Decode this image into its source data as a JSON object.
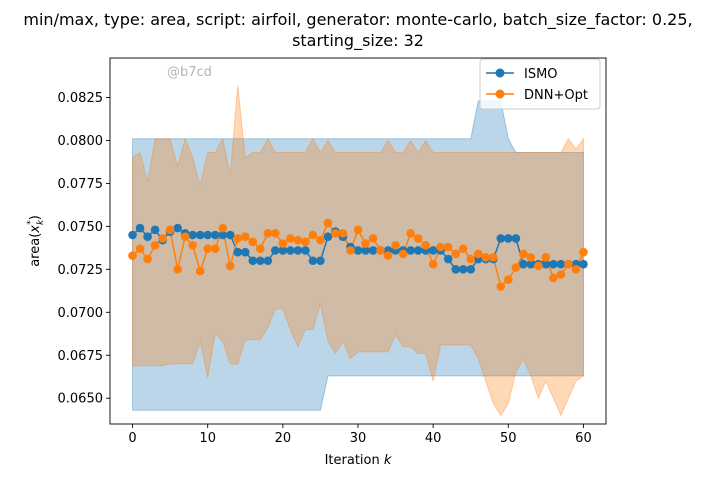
{
  "chart_data": {
    "type": "line",
    "title_line1": "min/max, type: area, script: airfoil, generator: monte-carlo, batch_size_factor: 0.25,",
    "title_line2": "starting_size: 32",
    "xlabel": "Iteration",
    "xlabel_var": "k",
    "ylabel_main": "area(",
    "ylabel_x": "x",
    "ylabel_sub": "k",
    "ylabel_sup": "*",
    "ylabel_close": ")",
    "watermark": "@b7cd",
    "xlim": [
      -3,
      63
    ],
    "ylim": [
      0.0635,
      0.0848
    ],
    "x_ticks": [
      0,
      10,
      20,
      30,
      40,
      50,
      60
    ],
    "y_ticks": [
      0.065,
      0.0675,
      0.07,
      0.0725,
      0.075,
      0.0775,
      0.08,
      0.0825
    ],
    "y_tick_labels": [
      "0.0650",
      "0.0675",
      "0.0700",
      "0.0725",
      "0.0750",
      "0.0775",
      "0.0800",
      "0.0825"
    ],
    "legend_position": "top-right",
    "grid": false,
    "series": [
      {
        "name": "ISMO",
        "color": "#1f77b4",
        "fill_color": "#1f77b4",
        "x": [
          0,
          1,
          2,
          3,
          4,
          5,
          6,
          7,
          8,
          9,
          10,
          11,
          12,
          13,
          14,
          15,
          16,
          17,
          18,
          19,
          20,
          21,
          22,
          23,
          24,
          25,
          26,
          27,
          28,
          29,
          30,
          31,
          32,
          33,
          34,
          35,
          36,
          37,
          38,
          39,
          40,
          41,
          42,
          43,
          44,
          45,
          46,
          47,
          48,
          49,
          50,
          51,
          52,
          53,
          54,
          55,
          56,
          57,
          58,
          59,
          60
        ],
        "values": [
          0.0745,
          0.0749,
          0.0744,
          0.0748,
          0.0742,
          0.0747,
          0.0749,
          0.0746,
          0.0745,
          0.0745,
          0.0745,
          0.0745,
          0.0745,
          0.0745,
          0.0735,
          0.0735,
          0.073,
          0.073,
          0.073,
          0.0736,
          0.0736,
          0.0736,
          0.0736,
          0.0736,
          0.073,
          0.073,
          0.0744,
          0.0747,
          0.0744,
          0.0738,
          0.0736,
          0.0736,
          0.0736,
          0.0736,
          0.0736,
          0.0736,
          0.0736,
          0.0736,
          0.0736,
          0.0736,
          0.0736,
          0.0736,
          0.0731,
          0.0725,
          0.0725,
          0.0725,
          0.0731,
          0.0731,
          0.0731,
          0.0743,
          0.0743,
          0.0743,
          0.0728,
          0.0728,
          0.0728,
          0.0728,
          0.0728,
          0.0728,
          0.0728,
          0.0728,
          0.0728
        ],
        "band_min": [
          0.0643,
          0.0643,
          0.0643,
          0.0643,
          0.0643,
          0.0643,
          0.0643,
          0.0643,
          0.0643,
          0.0643,
          0.0643,
          0.0643,
          0.0643,
          0.0643,
          0.0643,
          0.0643,
          0.0643,
          0.0643,
          0.0643,
          0.0643,
          0.0643,
          0.0643,
          0.0643,
          0.0643,
          0.0643,
          0.0643,
          0.0663,
          0.0663,
          0.0663,
          0.0663,
          0.0663,
          0.0663,
          0.0663,
          0.0663,
          0.0663,
          0.0663,
          0.0663,
          0.0663,
          0.0663,
          0.0663,
          0.0663,
          0.0663,
          0.0663,
          0.0663,
          0.0663,
          0.0663,
          0.0663,
          0.0663,
          0.0663,
          0.0663,
          0.0663,
          0.0663,
          0.0663,
          0.0663,
          0.0663,
          0.0663,
          0.0663,
          0.0663,
          0.0663,
          0.0663,
          0.0663
        ],
        "band_max": [
          0.0801,
          0.0801,
          0.0801,
          0.0801,
          0.0801,
          0.0801,
          0.0801,
          0.0801,
          0.0801,
          0.0801,
          0.0801,
          0.0801,
          0.0801,
          0.0801,
          0.0801,
          0.0801,
          0.0801,
          0.0801,
          0.0801,
          0.0801,
          0.0801,
          0.0801,
          0.0801,
          0.0801,
          0.0801,
          0.0801,
          0.0801,
          0.0801,
          0.0801,
          0.0801,
          0.0801,
          0.0801,
          0.0801,
          0.0801,
          0.0801,
          0.0801,
          0.0801,
          0.0801,
          0.0801,
          0.0801,
          0.0801,
          0.0801,
          0.0801,
          0.0801,
          0.0801,
          0.0801,
          0.0823,
          0.0823,
          0.0823,
          0.0823,
          0.0801,
          0.0793,
          0.0793,
          0.0793,
          0.0793,
          0.0793,
          0.0793,
          0.0793,
          0.0793,
          0.0793,
          0.0793
        ]
      },
      {
        "name": "DNN+Opt",
        "color": "#ff7f0e",
        "fill_color": "#ff7f0e",
        "x": [
          0,
          1,
          2,
          3,
          4,
          5,
          6,
          7,
          8,
          9,
          10,
          11,
          12,
          13,
          14,
          15,
          16,
          17,
          18,
          19,
          20,
          21,
          22,
          23,
          24,
          25,
          26,
          27,
          28,
          29,
          30,
          31,
          32,
          33,
          34,
          35,
          36,
          37,
          38,
          39,
          40,
          41,
          42,
          43,
          44,
          45,
          46,
          47,
          48,
          49,
          50,
          51,
          52,
          53,
          54,
          55,
          56,
          57,
          58,
          59,
          60
        ],
        "values": [
          0.0733,
          0.0737,
          0.0731,
          0.0739,
          0.0743,
          0.0748,
          0.0725,
          0.0744,
          0.0739,
          0.0724,
          0.0737,
          0.0737,
          0.0749,
          0.0727,
          0.0743,
          0.0744,
          0.0741,
          0.0737,
          0.0746,
          0.0746,
          0.074,
          0.0743,
          0.0742,
          0.0741,
          0.0745,
          0.0742,
          0.0752,
          0.0746,
          0.0746,
          0.0736,
          0.0748,
          0.074,
          0.0743,
          0.0736,
          0.0733,
          0.0739,
          0.0734,
          0.0746,
          0.0743,
          0.0739,
          0.0728,
          0.0738,
          0.0738,
          0.0734,
          0.0737,
          0.0731,
          0.0734,
          0.0732,
          0.0732,
          0.0715,
          0.0719,
          0.0726,
          0.0734,
          0.0732,
          0.0727,
          0.0732,
          0.072,
          0.0722,
          0.0728,
          0.0725,
          0.0735
        ],
        "band_min": [
          0.0669,
          0.0669,
          0.0669,
          0.0669,
          0.0669,
          0.067,
          0.067,
          0.067,
          0.067,
          0.0683,
          0.0662,
          0.0688,
          0.0683,
          0.067,
          0.067,
          0.0684,
          0.0684,
          0.0684,
          0.0691,
          0.0702,
          0.0702,
          0.069,
          0.068,
          0.069,
          0.069,
          0.0705,
          0.0683,
          0.0676,
          0.0683,
          0.0673,
          0.0677,
          0.0677,
          0.0677,
          0.0677,
          0.0677,
          0.0687,
          0.068,
          0.068,
          0.0676,
          0.0676,
          0.066,
          0.0681,
          0.0681,
          0.0681,
          0.0681,
          0.0681,
          0.0673,
          0.066,
          0.0647,
          0.064,
          0.0647,
          0.0665,
          0.0673,
          0.0663,
          0.065,
          0.066,
          0.065,
          0.064,
          0.065,
          0.066,
          0.0663
        ],
        "band_max": [
          0.079,
          0.0793,
          0.0776,
          0.0801,
          0.0801,
          0.0801,
          0.0785,
          0.0801,
          0.079,
          0.0774,
          0.0793,
          0.0793,
          0.0801,
          0.078,
          0.0832,
          0.079,
          0.0793,
          0.0793,
          0.0801,
          0.0793,
          0.0793,
          0.0793,
          0.0793,
          0.0793,
          0.0801,
          0.0793,
          0.08,
          0.0793,
          0.0793,
          0.0793,
          0.0793,
          0.0793,
          0.0793,
          0.0793,
          0.08,
          0.0793,
          0.0793,
          0.08,
          0.0793,
          0.08,
          0.0793,
          0.0793,
          0.0793,
          0.0793,
          0.0793,
          0.0793,
          0.0793,
          0.0793,
          0.0793,
          0.0793,
          0.0793,
          0.0793,
          0.0793,
          0.0793,
          0.0793,
          0.0793,
          0.0793,
          0.0793,
          0.0801,
          0.0795,
          0.0801
        ]
      }
    ]
  }
}
